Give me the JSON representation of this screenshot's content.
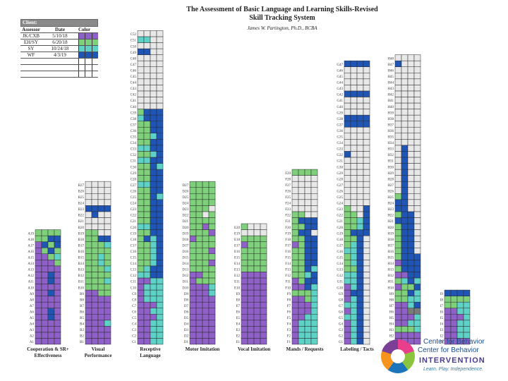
{
  "header": {
    "title_line1": "The Assessment of Basic Language and Learning Skills-Revised",
    "title_line2": "Skill Tracking System",
    "author": "James W. Partington, Ph.D., BCBA"
  },
  "legend": {
    "client_label": "Client:",
    "col_headers": [
      "Assessor",
      "Date",
      "Color"
    ],
    "rows": [
      {
        "assessor": "JK/CXB",
        "date": "5/10/18",
        "color": "#8e60c8"
      },
      {
        "assessor": "EH/SY",
        "date": "6/20/18",
        "color": "#7ed17a"
      },
      {
        "assessor": "SY",
        "date": "10/24/18",
        "color": "#5ed2c6"
      },
      {
        "assessor": "WF",
        "date": "4/3/19",
        "color": "#1f55b5"
      },
      {
        "assessor": "",
        "date": "",
        "color": ""
      },
      {
        "assessor": "",
        "date": "",
        "color": ""
      },
      {
        "assessor": "",
        "date": "",
        "color": ""
      }
    ]
  },
  "chart_data": {
    "type": "table",
    "colors": {
      "purple": "#8e60c8",
      "green": "#7ed17a",
      "teal": "#5ed2c6",
      "blue": "#1f55b5",
      "empty": "#e8e8e8",
      "gray": "#7a7a7a"
    },
    "domains": [
      {
        "name": "Cooperation & SR+ Effectiveness",
        "prefix": "A",
        "count": 19,
        "rows": [
          "PPPP",
          "PPPP",
          "PPPP",
          "PPPP",
          "PPBP",
          "PPBP",
          "PPPP",
          "PPPP",
          "PPBP",
          "PPPP",
          "PPBP",
          "PPBP",
          "PPPP",
          "PPPG",
          "PPGT",
          "PGBG",
          "PBGB",
          "GGBB",
          "GGGG"
        ]
      },
      {
        "name": "Visual Performance",
        "prefix": "B",
        "count": 27,
        "rows": [
          "PPPP",
          "PPPP",
          "PPPP",
          "PPPT",
          "PPPP",
          "PPPP",
          "PPPP",
          "PPPP",
          "PPGG",
          "GGGG",
          "GGGT",
          "GGGG",
          "GGGT",
          "GGTG",
          "GGTG",
          "GGGG",
          "GGGT",
          "GGBB",
          "GGEE",
          "EEEE",
          "EEEE",
          "EBEE",
          "BBBB",
          "EEEE",
          "EEEE",
          "EEEE",
          "EEEE"
        ]
      },
      {
        "name": "Receptive Language",
        "prefix": "C",
        "count": 52,
        "rows": [
          "PPTT",
          "PPTT",
          "PPTT",
          "PPTT",
          "PPPT",
          "PPTT",
          "PPPT",
          "PTTT",
          "PTTT",
          "PTTT",
          "PPTT",
          "TTBB",
          "GTBB",
          "GGTB",
          "GGTB",
          "GGTB",
          "GGTB",
          "GBTB",
          "GGBB",
          "TTBB",
          "GGBB",
          "GGBB",
          "GGBB",
          "GGBB",
          "GGBT",
          "GGBB",
          "TTBB",
          "GGBB",
          "GGBB",
          "GGBT",
          "TTBB",
          "GGTB",
          "TTBB",
          "GGBB",
          "GGTB",
          "GGBB",
          "GGBB",
          "TBBB",
          "GBBB",
          "EEEE",
          "EEEE",
          "EEEE",
          "EEEE",
          "EEEE",
          "EEEE",
          "EEEE",
          "EEEE",
          "EEEE",
          "BBEE",
          "EEEE",
          "TTEE",
          "EEEE"
        ]
      },
      {
        "name": "Motor Imitation",
        "prefix": "D",
        "count": 27,
        "rows": [
          "PPPP",
          "PPPP",
          "PPPP",
          "PPPP",
          "PPPP",
          "PPPP",
          "PPPP",
          "PPPP",
          "PPPT",
          "PPPT",
          "PGGG",
          "PPGG",
          "GGGG",
          "GGGP",
          "GGGG",
          "GGGP",
          "GGGG",
          "PGGG",
          "GGGP",
          "GGPG",
          "GGGG",
          "GGEG",
          "GGGE",
          "GGGG",
          "GGGG",
          "GGGG",
          "GGGG"
        ]
      },
      {
        "name": "Vocal Imitation",
        "prefix": "E",
        "count": 20,
        "rows": [
          "PPPP",
          "PPPP",
          "PPPP",
          "PPPP",
          "PPPP",
          "PPPP",
          "PPPP",
          "PPPP",
          "PPPP",
          "PPPP",
          "PPPP",
          "PPPP",
          "GGGG",
          "GGGG",
          "GGGG",
          "GGGG",
          "PGGG",
          "GGGG",
          "EEEE",
          "GEEE"
        ]
      },
      {
        "name": "Mands / Requests",
        "prefix": "F",
        "count": 29,
        "rows": [
          "PTTT",
          "PTTT",
          "PTTT",
          "PTTT",
          "PPTT",
          "PPPT",
          "PPPT",
          "PPGT",
          "GGGT",
          "PPBT",
          "PGBB",
          "GGTB",
          "GGBT",
          "GGBB",
          "GGBB",
          "GGBB",
          "PGBB",
          "GGBB",
          "GBBE",
          "GGBB",
          "GBBB",
          "GGEE",
          "EEEE",
          "EEEE",
          "EEEE",
          "EEEE",
          "EEEE",
          "EEEE",
          "GGGG"
        ]
      },
      {
        "name": "Labeling / Tacts",
        "prefix": "G",
        "count": 47,
        "rows": [
          "PTBE",
          "PTBE",
          "PTBE",
          "PTBE",
          "TTBE",
          "PTBE",
          "TTBE",
          "PTBE",
          "PBBE",
          "PTBE",
          "TTBE",
          "TTBE",
          "GGBE",
          "GTBE",
          "GTBE",
          "TTBE",
          "GTBE",
          "GGBE",
          "GBBB",
          "GGTB",
          "GGTB",
          "GGEB",
          "GEEB",
          "EEEE",
          "EEEE",
          "EEEE",
          "EEEE",
          "EEEE",
          "EEEE",
          "EEEE",
          "EEEE",
          "BEEE",
          "EEEE",
          "EEEE",
          "EEEE",
          "EEEE",
          "BBBB",
          "BBBB",
          "EEEE",
          "EEEE",
          "EEEE",
          "BBBB",
          "EEEE",
          "EEEE",
          "EEEE",
          "EEEE",
          "BBBB"
        ]
      },
      {
        "name": "",
        "prefix": "H",
        "count": 48,
        "rows": [
          "PPPP",
          "PPPP",
          "GGGT",
          "PPTT",
          "PPPT",
          "PPXX",
          "PPTB",
          "GGTT",
          "GGBT",
          "PGGB",
          "GTBT",
          "PPBB",
          "GBBB",
          "PBBB",
          "GBBB",
          "GBBE",
          "GBBE",
          "GBBE",
          "GBBE",
          "GBBE",
          "BBBE",
          "GBBE",
          "BBEE",
          "BBEE",
          "GBEE",
          "EBEE",
          "EBEE",
          "EBEE",
          "EBEE",
          "EBEE",
          "EBEE",
          "EBEE",
          "EBEE",
          "EEEE",
          "EEEE",
          "EEEE",
          "EEEE",
          "EEEE",
          "EEEE",
          "EEEE",
          "EEEE",
          "EEEE",
          "EEEE",
          "EEEE",
          "EEEE",
          "EEEE",
          "BEEE",
          "EEEE"
        ]
      },
      {
        "name": "",
        "prefix": "I",
        "count": 9,
        "rows": [
          "PPPP",
          "PPTT",
          "PPTT",
          "PPTT",
          "PPPT",
          "PPTT",
          "GGTT",
          "GGGG",
          "BBBB"
        ]
      }
    ]
  },
  "logo": {
    "line1": "Center for Behavior",
    "line2": "Center for Behavior",
    "line3": "INTERVENTION",
    "line4": "Learn. Play. Independence."
  }
}
